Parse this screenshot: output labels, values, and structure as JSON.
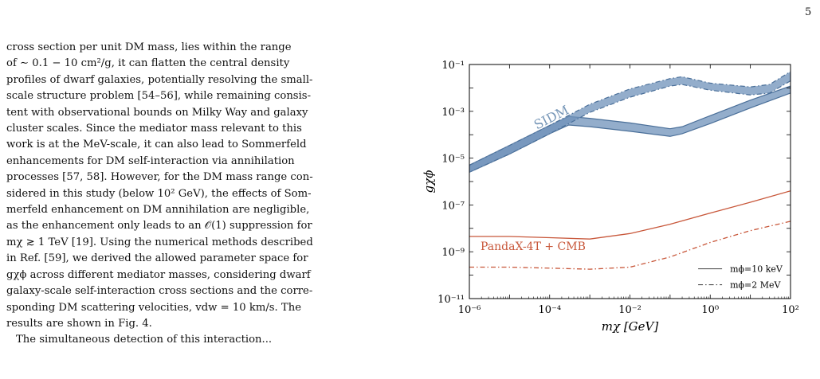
{
  "page": {
    "number": "5"
  },
  "body_text": [
    "cross section per unit DM mass, lies within the range",
    "of ∼ 0.1 − 10 cm²/g, it can flatten the central density",
    "profiles of dwarf galaxies, potentially resolving the small-",
    "scale structure problem [54–56], while remaining consis-",
    "tent with observational bounds on Milky Way and galaxy",
    "cluster scales. Since the mediator mass relevant to this",
    "work is at the MeV-scale, it can also lead to Sommerfeld",
    "enhancements for DM self-interaction via annihilation",
    "processes [57, 58]. However, for the DM mass range con-",
    "sidered in this study (below 10² GeV), the effects of Som-",
    "merfeld enhancement on DM annihilation are negligible,",
    "as the enhancement only leads to an 𝒪(1) suppression for",
    "mχ ≳ 1 TeV [19]. Using the numerical methods described",
    "in Ref. [59], we derived the allowed parameter space for",
    "gχϕ across different mediator masses, considering dwarf",
    "galaxy-scale self-interaction cross sections and the corre-",
    "sponding DM scattering velocities, vdw = 10 km/s. The",
    "results are shown in Fig. 4.",
    "The simultaneous detection of this interaction..."
  ],
  "chart_data": {
    "type": "line",
    "log_x": true,
    "log_y": true,
    "xlim": [
      1e-06,
      100
    ],
    "ylim": [
      1e-11,
      0.1
    ],
    "xlabel": "mχ [GeV]",
    "ylabel": "gχϕ",
    "x_ticks": [
      {
        "value": 1e-06,
        "label": "10⁻⁶"
      },
      {
        "value": 0.0001,
        "label": "10⁻⁴"
      },
      {
        "value": 0.01,
        "label": "10⁻²"
      },
      {
        "value": 1,
        "label": "10⁰"
      },
      {
        "value": 100,
        "label": "10²"
      }
    ],
    "y_ticks": [
      {
        "value": 1e-11,
        "label": "10⁻¹¹"
      },
      {
        "value": 1e-09,
        "label": "10⁻⁹"
      },
      {
        "value": 1e-07,
        "label": "10⁻⁷"
      },
      {
        "value": 1e-05,
        "label": "10⁻⁵"
      },
      {
        "value": 0.001,
        "label": "10⁻³"
      },
      {
        "value": 0.1,
        "label": "10⁻¹"
      }
    ],
    "grid": false,
    "legend_position": "bottom-right",
    "legend": [
      {
        "label": "mϕ=10 keV",
        "style": "solid"
      },
      {
        "label": "mϕ=2 MeV",
        "style": "dashdot"
      }
    ],
    "annotations": [
      {
        "text": "SIDM",
        "color": "#7797b8"
      },
      {
        "text": "PandaX-4T + CMB",
        "color": "#c8573a"
      }
    ],
    "colors": {
      "sidm_fill": "#6f92b9",
      "sidm_edge": "#4a6f99",
      "pandax": "#c8573a"
    },
    "series": [
      {
        "label": "SIDM",
        "kind": "band",
        "style": "solid",
        "x": [
          1e-06,
          1e-05,
          0.0001,
          0.0003,
          0.001,
          0.01,
          0.1,
          0.2,
          1,
          10,
          100
        ],
        "upper": [
          5e-06,
          3.5e-05,
          0.00025,
          0.0006,
          0.0005,
          0.00032,
          0.00018,
          0.00022,
          0.00065,
          0.003,
          0.012
        ],
        "lower": [
          2.5e-06,
          1.5e-05,
          0.00011,
          0.00026,
          0.00022,
          0.00014,
          8.5e-05,
          0.00011,
          0.0003,
          0.0014,
          0.006
        ]
      },
      {
        "label": "SIDM",
        "kind": "band",
        "style": "dashdot",
        "x": [
          1e-06,
          1e-05,
          0.0001,
          0.001,
          0.01,
          0.1,
          0.2,
          1,
          10,
          30,
          100
        ],
        "upper": [
          5e-06,
          3.5e-05,
          0.00025,
          0.002,
          0.009,
          0.025,
          0.03,
          0.016,
          0.011,
          0.014,
          0.05
        ],
        "lower": [
          2.5e-06,
          1.5e-05,
          0.00011,
          0.0009,
          0.004,
          0.012,
          0.014,
          0.008,
          0.005,
          0.006,
          0.02
        ]
      },
      {
        "label": "PandaX-4T + CMB",
        "kind": "line",
        "style": "solid",
        "x": [
          1e-06,
          1e-05,
          0.0001,
          0.001,
          0.01,
          0.1,
          1,
          10,
          100
        ],
        "y": [
          4.5e-09,
          4.5e-09,
          4e-09,
          3.5e-09,
          6e-09,
          1.5e-08,
          4.5e-08,
          1.3e-07,
          4e-07
        ]
      },
      {
        "label": "PandaX-4T + CMB",
        "kind": "line",
        "style": "dashdot",
        "x": [
          1e-06,
          1e-05,
          0.0001,
          0.001,
          0.01,
          0.1,
          1,
          10,
          100
        ],
        "y": [
          2.2e-10,
          2.2e-10,
          2e-10,
          1.8e-10,
          2.2e-10,
          6e-10,
          2.5e-09,
          8e-09,
          2e-08
        ]
      }
    ]
  }
}
